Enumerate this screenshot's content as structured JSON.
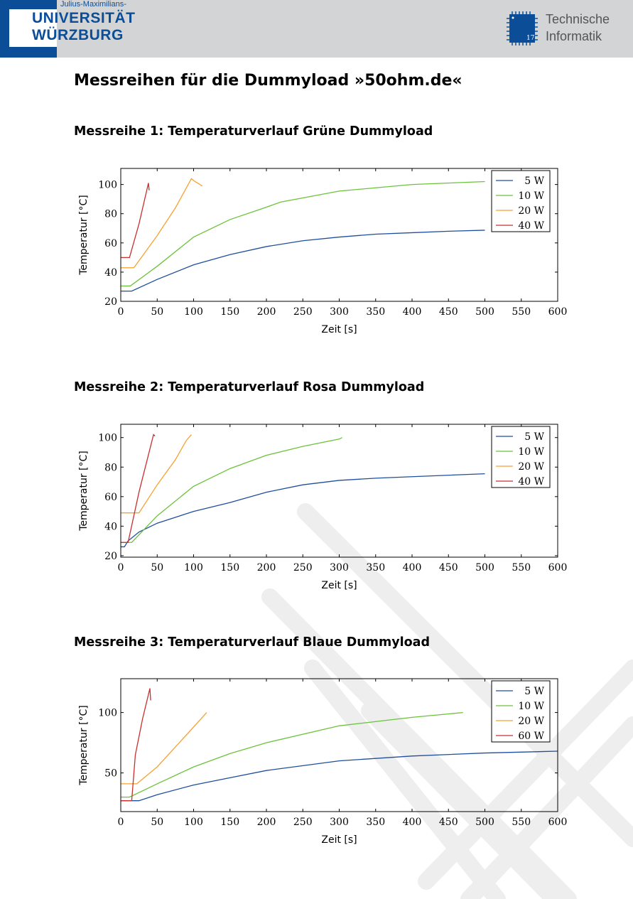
{
  "header": {
    "uni_small": "Julius-Maximilians-",
    "uni_line1": "UNIVERSITÄT",
    "uni_line2": "WÜRZBURG",
    "chip_number": "17",
    "ti_line1": "Technische",
    "ti_line2": "Informatik",
    "brand_color": "#0b4e97"
  },
  "title": "Messreihen für die Dummyload »50ohm.de«",
  "sections": [
    {
      "heading": "Messreihe 1: Temperaturverlauf Grüne Dummyload"
    },
    {
      "heading": "Messreihe 2: Temperaturverlauf Rosa Dummyload"
    },
    {
      "heading": "Messreihe 3: Temperaturverlauf Blaue Dummyload"
    }
  ],
  "chart_data": [
    {
      "type": "line",
      "xlabel": "Zeit [s]",
      "ylabel": "Temperatur [°C]",
      "xlim": [
        0,
        600
      ],
      "ylim": [
        20,
        111
      ],
      "xticks": [
        0,
        50,
        100,
        150,
        200,
        250,
        300,
        350,
        400,
        450,
        500,
        550,
        600
      ],
      "yticks": [
        20,
        40,
        60,
        80,
        100
      ],
      "legend": "top-right",
      "series": [
        {
          "name": "5 W",
          "color": "#1f4e9c",
          "x": [
            0,
            15,
            50,
            100,
            150,
            200,
            250,
            300,
            350,
            400,
            450,
            500
          ],
          "y": [
            27,
            27,
            35,
            45,
            52,
            57.5,
            61.5,
            64,
            66,
            67,
            68,
            68.7
          ]
        },
        {
          "name": "10 W",
          "color": "#6cc23a",
          "x": [
            0,
            13,
            50,
            100,
            150,
            200,
            220,
            300,
            400,
            500
          ],
          "y": [
            30.5,
            30.5,
            44,
            64,
            76,
            84.5,
            88,
            95.5,
            100,
            102
          ]
        },
        {
          "name": "20 W",
          "color": "#f7a131",
          "x": [
            0,
            18,
            50,
            75,
            97,
            102,
            112
          ],
          "y": [
            43,
            43,
            65,
            84,
            104,
            102,
            99
          ]
        },
        {
          "name": "40 W",
          "color": "#c8312f",
          "x": [
            0,
            12,
            25,
            38,
            39
          ],
          "y": [
            50,
            50,
            73,
            101,
            96
          ]
        }
      ]
    },
    {
      "type": "line",
      "xlabel": "Zeit [s]",
      "ylabel": "Temperatur [°C]",
      "xlim": [
        0,
        600
      ],
      "ylim": [
        19,
        109
      ],
      "xticks": [
        0,
        50,
        100,
        150,
        200,
        250,
        300,
        350,
        400,
        450,
        500,
        550,
        600
      ],
      "yticks": [
        20,
        40,
        60,
        80,
        100
      ],
      "legend": "top-right",
      "series": [
        {
          "name": "5 W",
          "color": "#1f4e9c",
          "x": [
            0,
            5,
            10,
            25,
            50,
            100,
            150,
            200,
            250,
            300,
            350,
            400,
            500
          ],
          "y": [
            26,
            26,
            30,
            36,
            42,
            50,
            56,
            63,
            68,
            71,
            72.5,
            73.5,
            75.5
          ]
        },
        {
          "name": "10 W",
          "color": "#6cc23a",
          "x": [
            0,
            15,
            50,
            100,
            150,
            200,
            250,
            300,
            304
          ],
          "y": [
            29,
            29,
            47,
            67,
            79,
            88,
            94,
            99,
            100
          ]
        },
        {
          "name": "20 W",
          "color": "#f7a131",
          "x": [
            0,
            25,
            50,
            75,
            90,
            97
          ],
          "y": [
            49,
            49,
            68,
            85,
            98,
            102
          ]
        },
        {
          "name": "40 W",
          "color": "#c8312f",
          "x": [
            0,
            10,
            25,
            45,
            47
          ],
          "y": [
            29,
            29,
            63,
            102,
            101
          ]
        }
      ]
    },
    {
      "type": "line",
      "xlabel": "Zeit [s]",
      "ylabel": "Temperatur [°C]",
      "xlim": [
        0,
        600
      ],
      "ylim": [
        18,
        128
      ],
      "xticks": [
        0,
        50,
        100,
        150,
        200,
        250,
        300,
        350,
        400,
        450,
        500,
        550,
        600
      ],
      "yticks": [
        50,
        100
      ],
      "legend": "top-right",
      "series": [
        {
          "name": "5 W",
          "color": "#1f4e9c",
          "x": [
            0,
            25,
            50,
            100,
            150,
            200,
            300,
            400,
            500,
            600
          ],
          "y": [
            27,
            27,
            32,
            40,
            46,
            52,
            60,
            64,
            66.5,
            68
          ]
        },
        {
          "name": "10 W",
          "color": "#6cc23a",
          "x": [
            0,
            12,
            50,
            100,
            150,
            200,
            300,
            400,
            470
          ],
          "y": [
            30,
            30,
            41,
            55,
            66,
            75,
            89,
            96,
            100
          ]
        },
        {
          "name": "20 W",
          "color": "#f7a131",
          "x": [
            0,
            22,
            50,
            100,
            118
          ],
          "y": [
            41,
            41,
            55,
            88,
            100
          ]
        },
        {
          "name": "60 W",
          "color": "#c8312f",
          "x": [
            0,
            15,
            20,
            30,
            40,
            41
          ],
          "y": [
            27,
            27,
            65,
            95,
            120,
            110
          ]
        }
      ]
    }
  ]
}
